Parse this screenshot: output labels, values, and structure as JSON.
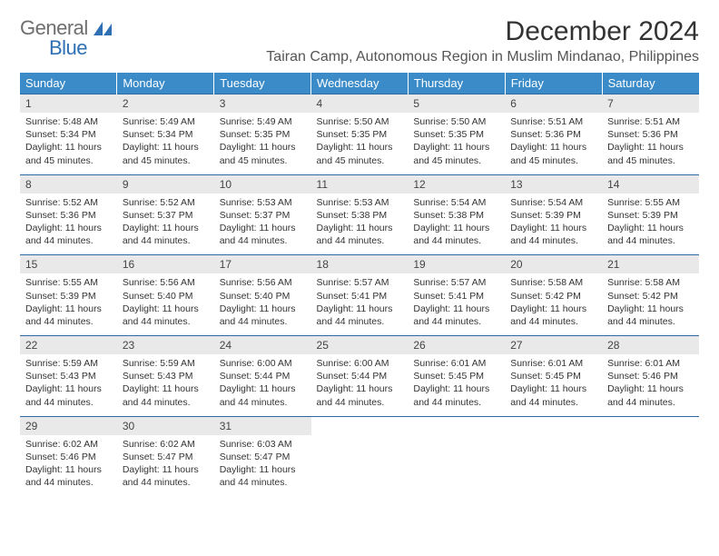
{
  "logo": {
    "word1": "General",
    "word2": "Blue"
  },
  "title": "December 2024",
  "subtitle": "Tairan Camp, Autonomous Region in Muslim Mindanao, Philippines",
  "colors": {
    "header_bg": "#3b8bc9",
    "header_text": "#ffffff",
    "row_divider": "#2b6aa3",
    "daynum_bg": "#e9e9e9",
    "logo_gray": "#6e6e6e",
    "logo_blue": "#2f6fb3"
  },
  "day_headers": [
    "Sunday",
    "Monday",
    "Tuesday",
    "Wednesday",
    "Thursday",
    "Friday",
    "Saturday"
  ],
  "days": [
    {
      "n": "1",
      "sr": "5:48 AM",
      "ss": "5:34 PM",
      "dl": "11 hours and 45 minutes."
    },
    {
      "n": "2",
      "sr": "5:49 AM",
      "ss": "5:34 PM",
      "dl": "11 hours and 45 minutes."
    },
    {
      "n": "3",
      "sr": "5:49 AM",
      "ss": "5:35 PM",
      "dl": "11 hours and 45 minutes."
    },
    {
      "n": "4",
      "sr": "5:50 AM",
      "ss": "5:35 PM",
      "dl": "11 hours and 45 minutes."
    },
    {
      "n": "5",
      "sr": "5:50 AM",
      "ss": "5:35 PM",
      "dl": "11 hours and 45 minutes."
    },
    {
      "n": "6",
      "sr": "5:51 AM",
      "ss": "5:36 PM",
      "dl": "11 hours and 45 minutes."
    },
    {
      "n": "7",
      "sr": "5:51 AM",
      "ss": "5:36 PM",
      "dl": "11 hours and 45 minutes."
    },
    {
      "n": "8",
      "sr": "5:52 AM",
      "ss": "5:36 PM",
      "dl": "11 hours and 44 minutes."
    },
    {
      "n": "9",
      "sr": "5:52 AM",
      "ss": "5:37 PM",
      "dl": "11 hours and 44 minutes."
    },
    {
      "n": "10",
      "sr": "5:53 AM",
      "ss": "5:37 PM",
      "dl": "11 hours and 44 minutes."
    },
    {
      "n": "11",
      "sr": "5:53 AM",
      "ss": "5:38 PM",
      "dl": "11 hours and 44 minutes."
    },
    {
      "n": "12",
      "sr": "5:54 AM",
      "ss": "5:38 PM",
      "dl": "11 hours and 44 minutes."
    },
    {
      "n": "13",
      "sr": "5:54 AM",
      "ss": "5:39 PM",
      "dl": "11 hours and 44 minutes."
    },
    {
      "n": "14",
      "sr": "5:55 AM",
      "ss": "5:39 PM",
      "dl": "11 hours and 44 minutes."
    },
    {
      "n": "15",
      "sr": "5:55 AM",
      "ss": "5:39 PM",
      "dl": "11 hours and 44 minutes."
    },
    {
      "n": "16",
      "sr": "5:56 AM",
      "ss": "5:40 PM",
      "dl": "11 hours and 44 minutes."
    },
    {
      "n": "17",
      "sr": "5:56 AM",
      "ss": "5:40 PM",
      "dl": "11 hours and 44 minutes."
    },
    {
      "n": "18",
      "sr": "5:57 AM",
      "ss": "5:41 PM",
      "dl": "11 hours and 44 minutes."
    },
    {
      "n": "19",
      "sr": "5:57 AM",
      "ss": "5:41 PM",
      "dl": "11 hours and 44 minutes."
    },
    {
      "n": "20",
      "sr": "5:58 AM",
      "ss": "5:42 PM",
      "dl": "11 hours and 44 minutes."
    },
    {
      "n": "21",
      "sr": "5:58 AM",
      "ss": "5:42 PM",
      "dl": "11 hours and 44 minutes."
    },
    {
      "n": "22",
      "sr": "5:59 AM",
      "ss": "5:43 PM",
      "dl": "11 hours and 44 minutes."
    },
    {
      "n": "23",
      "sr": "5:59 AM",
      "ss": "5:43 PM",
      "dl": "11 hours and 44 minutes."
    },
    {
      "n": "24",
      "sr": "6:00 AM",
      "ss": "5:44 PM",
      "dl": "11 hours and 44 minutes."
    },
    {
      "n": "25",
      "sr": "6:00 AM",
      "ss": "5:44 PM",
      "dl": "11 hours and 44 minutes."
    },
    {
      "n": "26",
      "sr": "6:01 AM",
      "ss": "5:45 PM",
      "dl": "11 hours and 44 minutes."
    },
    {
      "n": "27",
      "sr": "6:01 AM",
      "ss": "5:45 PM",
      "dl": "11 hours and 44 minutes."
    },
    {
      "n": "28",
      "sr": "6:01 AM",
      "ss": "5:46 PM",
      "dl": "11 hours and 44 minutes."
    },
    {
      "n": "29",
      "sr": "6:02 AM",
      "ss": "5:46 PM",
      "dl": "11 hours and 44 minutes."
    },
    {
      "n": "30",
      "sr": "6:02 AM",
      "ss": "5:47 PM",
      "dl": "11 hours and 44 minutes."
    },
    {
      "n": "31",
      "sr": "6:03 AM",
      "ss": "5:47 PM",
      "dl": "11 hours and 44 minutes."
    }
  ],
  "labels": {
    "sunrise": "Sunrise: ",
    "sunset": "Sunset: ",
    "daylight": "Daylight: "
  }
}
